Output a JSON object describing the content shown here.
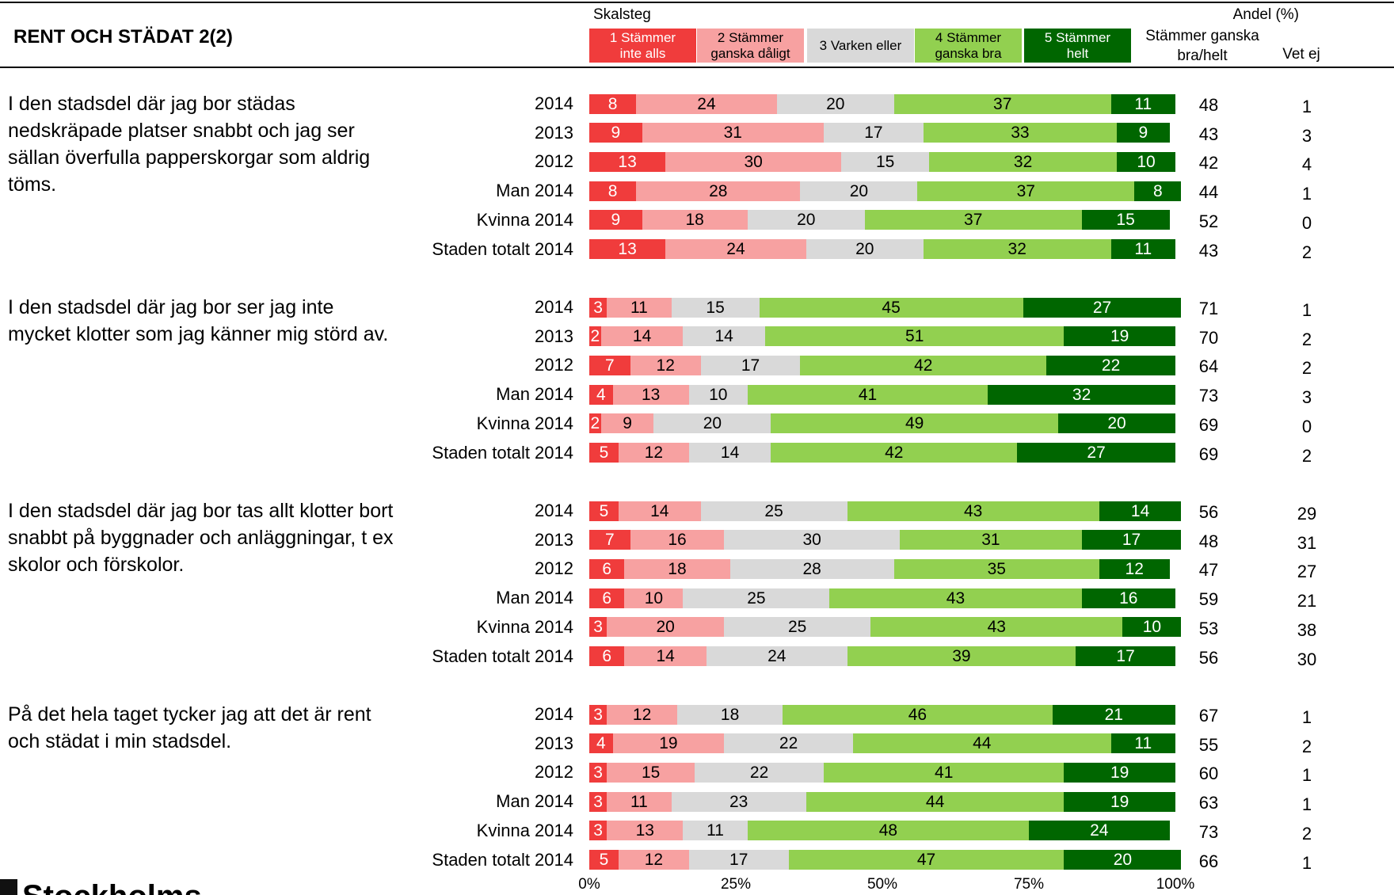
{
  "chart_data": {
    "type": "stacked-bar",
    "title": "RENT OCH STÄDAT 2(2)",
    "legend_title": "Skalsteg",
    "share_header": "Andel (%)",
    "agree_header": "Stämmer ganska bra/helt",
    "dont_know_header": "Vet ej",
    "logo_text": "Stockholms",
    "series": [
      {
        "name": "1 Stämmer inte alls",
        "color": "#f03c3c",
        "text_color": "#ffffff"
      },
      {
        "name": "2 Stämmer ganska dåligt",
        "color": "#f7a1a1",
        "text_color": "#000000"
      },
      {
        "name": "3 Varken eller",
        "color": "#d9d9d9",
        "text_color": "#000000"
      },
      {
        "name": "4 Stämmer ganska bra",
        "color": "#92d050",
        "text_color": "#000000"
      },
      {
        "name": "5 Stämmer helt",
        "color": "#006600",
        "text_color": "#ffffff"
      }
    ],
    "xlim": [
      0,
      100
    ],
    "xticks": [
      {
        "value": 0,
        "label": "0%"
      },
      {
        "value": 25,
        "label": "25%"
      },
      {
        "value": 50,
        "label": "50%"
      },
      {
        "value": 75,
        "label": "75%"
      },
      {
        "value": 100,
        "label": "100%"
      }
    ],
    "groups": [
      {
        "question": "I den stadsdel där jag bor städas nedskräpade platser snabbt och jag ser sällan överfulla papperskorgar som aldrig töms.",
        "rows": [
          {
            "label": "2014",
            "values": [
              8,
              24,
              20,
              37,
              11
            ],
            "agree": 48,
            "dont_know": 1
          },
          {
            "label": "2013",
            "values": [
              9,
              31,
              17,
              33,
              9
            ],
            "agree": 43,
            "dont_know": 3
          },
          {
            "label": "2012",
            "values": [
              13,
              30,
              15,
              32,
              10
            ],
            "agree": 42,
            "dont_know": 4
          },
          {
            "label": "Man 2014",
            "values": [
              8,
              28,
              20,
              37,
              8
            ],
            "agree": 44,
            "dont_know": 1
          },
          {
            "label": "Kvinna 2014",
            "values": [
              9,
              18,
              20,
              37,
              15
            ],
            "agree": 52,
            "dont_know": 0
          },
          {
            "label": "Staden totalt 2014",
            "values": [
              13,
              24,
              20,
              32,
              11
            ],
            "agree": 43,
            "dont_know": 2
          }
        ]
      },
      {
        "question": "I den stadsdel där jag bor ser jag inte mycket klotter som jag känner mig störd av.",
        "rows": [
          {
            "label": "2014",
            "values": [
              3,
              11,
              15,
              45,
              27
            ],
            "agree": 71,
            "dont_know": 1
          },
          {
            "label": "2013",
            "values": [
              2,
              14,
              14,
              51,
              19
            ],
            "agree": 70,
            "dont_know": 2
          },
          {
            "label": "2012",
            "values": [
              7,
              12,
              17,
              42,
              22
            ],
            "agree": 64,
            "dont_know": 2
          },
          {
            "label": "Man 2014",
            "values": [
              4,
              13,
              10,
              41,
              32
            ],
            "agree": 73,
            "dont_know": 3
          },
          {
            "label": "Kvinna 2014",
            "values": [
              2,
              9,
              20,
              49,
              20
            ],
            "agree": 69,
            "dont_know": 0
          },
          {
            "label": "Staden totalt 2014",
            "values": [
              5,
              12,
              14,
              42,
              27
            ],
            "agree": 69,
            "dont_know": 2
          }
        ]
      },
      {
        "question": "I den stadsdel där jag bor tas allt klotter bort snabbt på byggnader och anläggningar, t ex skolor och förskolor.",
        "rows": [
          {
            "label": "2014",
            "values": [
              5,
              14,
              25,
              43,
              14
            ],
            "agree": 56,
            "dont_know": 29
          },
          {
            "label": "2013",
            "values": [
              7,
              16,
              30,
              31,
              17
            ],
            "agree": 48,
            "dont_know": 31
          },
          {
            "label": "2012",
            "values": [
              6,
              18,
              28,
              35,
              12
            ],
            "agree": 47,
            "dont_know": 27
          },
          {
            "label": "Man 2014",
            "values": [
              6,
              10,
              25,
              43,
              16
            ],
            "agree": 59,
            "dont_know": 21
          },
          {
            "label": "Kvinna 2014",
            "values": [
              3,
              20,
              25,
              43,
              10
            ],
            "agree": 53,
            "dont_know": 38
          },
          {
            "label": "Staden totalt 2014",
            "values": [
              6,
              14,
              24,
              39,
              17
            ],
            "agree": 56,
            "dont_know": 30
          }
        ]
      },
      {
        "question": "På det hela taget tycker jag att det är rent och städat i min stadsdel.",
        "rows": [
          {
            "label": "2014",
            "values": [
              3,
              12,
              18,
              46,
              21
            ],
            "agree": 67,
            "dont_know": 1
          },
          {
            "label": "2013",
            "values": [
              4,
              19,
              22,
              44,
              11
            ],
            "agree": 55,
            "dont_know": 2
          },
          {
            "label": "2012",
            "values": [
              3,
              15,
              22,
              41,
              19
            ],
            "agree": 60,
            "dont_know": 1
          },
          {
            "label": "Man 2014",
            "values": [
              3,
              11,
              23,
              44,
              19
            ],
            "agree": 63,
            "dont_know": 1
          },
          {
            "label": "Kvinna 2014",
            "values": [
              3,
              13,
              11,
              48,
              24
            ],
            "agree": 73,
            "dont_know": 2
          },
          {
            "label": "Staden totalt 2014",
            "values": [
              5,
              12,
              17,
              47,
              20
            ],
            "agree": 66,
            "dont_know": 1
          }
        ]
      }
    ]
  }
}
